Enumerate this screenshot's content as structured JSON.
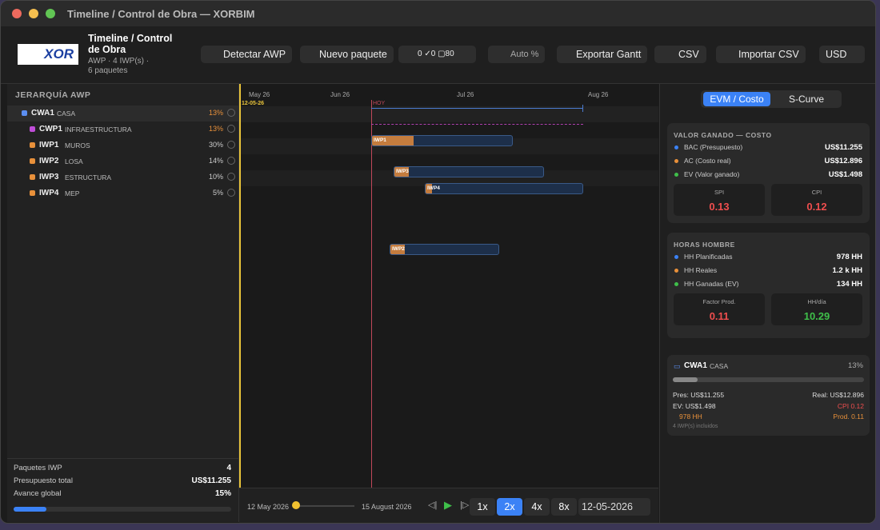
{
  "window": {
    "title": "Timeline / Control de Obra — XORBIM"
  },
  "header": {
    "logo": "XOR",
    "title": "Timeline / Control de Obra",
    "subtitle": "AWP · 4 IWP(s) ·",
    "subtitle2": "6 paquetes"
  },
  "toolbar": {
    "detect": "Detectar AWP",
    "new_package": "Nuevo paquete",
    "counts": [
      "0",
      "0",
      "80"
    ],
    "auto": "Auto %",
    "export": "Exportar Gantt",
    "csv": "CSV",
    "import": "Importar CSV",
    "currency": "USD"
  },
  "tree": {
    "heading": "JERARQUÍA AWP",
    "rows": [
      {
        "code": "CWA1",
        "name": "CASA",
        "pct": "13%"
      },
      {
        "code": "CWP1",
        "name": "INFRAESTRUCTURA",
        "pct": "13%"
      },
      {
        "code": "IWP1",
        "name": "MUROS",
        "pct": "30%"
      },
      {
        "code": "IWP2",
        "name": "LOSA",
        "pct": "14%"
      },
      {
        "code": "IWP3",
        "name": "ESTRUCTURA",
        "pct": "10%"
      },
      {
        "code": "IWP4",
        "name": "MEP",
        "pct": "5%"
      }
    ]
  },
  "summary": {
    "rows": [
      {
        "label": "Paquetes IWP",
        "value": "4"
      },
      {
        "label": "Presupuesto total",
        "value": "US$11.255"
      },
      {
        "label": "Avance global",
        "value": "15%"
      }
    ]
  },
  "timeline": {
    "months": [
      "May 26",
      "Jun 26",
      "Jul 26",
      "Aug 26"
    ],
    "start_date": "12-05-26",
    "today": "HOY",
    "bars": [
      "IWP1",
      "IWP2",
      "IWP3",
      "IWP4"
    ]
  },
  "player": {
    "start": "12 May 2026",
    "end": "15 August 2026",
    "speeds": [
      "1x",
      "2x",
      "4x",
      "8x"
    ],
    "date": "12-05-2026"
  },
  "tabs": [
    "EVM / Costo",
    "S-Curve"
  ],
  "evm": {
    "heading": "VALOR GANADO — COSTO",
    "rows": [
      {
        "label": "BAC (Presupuesto)",
        "value": "US$11.255"
      },
      {
        "label": "AC  (Costo real)",
        "value": "US$12.896"
      },
      {
        "label": "EV  (Valor ganado)",
        "value": "US$1.498"
      }
    ],
    "tiles": [
      {
        "label": "SPI",
        "value": "0.13"
      },
      {
        "label": "CPI",
        "value": "0.12"
      }
    ]
  },
  "hours": {
    "heading": "HORAS HOMBRE",
    "rows": [
      {
        "label": "HH Planificadas",
        "value": "978 HH"
      },
      {
        "label": "HH Reales",
        "value": "1.2 k HH"
      },
      {
        "label": "HH Ganadas (EV)",
        "value": "134 HH"
      }
    ],
    "tiles": [
      {
        "label": "Factor Prod.",
        "value": "0.11"
      },
      {
        "label": "HH/día",
        "value": "10.29"
      }
    ]
  },
  "card": {
    "code": "CWA1",
    "name": "CASA",
    "pct": "13%",
    "pres": "Pres: US$11.255",
    "real": "Real: US$12.896",
    "ev": "EV: US$1.498",
    "cpi": "CPI 0.12",
    "hh": "978 HH",
    "prod": "Prod. 0.11",
    "note": "4 IWP(s) incluidos"
  }
}
